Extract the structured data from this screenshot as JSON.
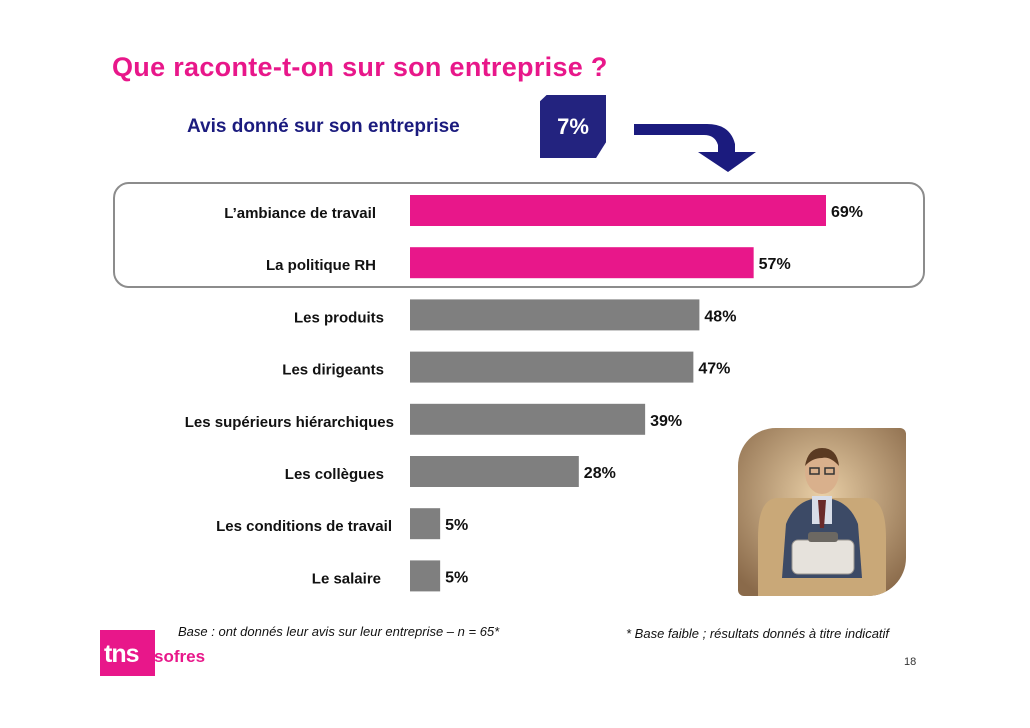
{
  "title": "Que raconte-t-on sur son entreprise ?",
  "subtitle": "Avis donné sur son entreprise",
  "badge": "7%",
  "base_note": "Base : ont donnés leur avis sur leur entreprise – n = 65*",
  "faible_note": "* Base faible ; résultats donnés à titre indicatif",
  "page_number": "18",
  "logo": {
    "tns": "tns",
    "sofres": "sofres"
  },
  "icons": {
    "arrow": "curved-arrow-icon",
    "photo": "businessman-photo"
  },
  "colors": {
    "highlight": "#e8178a",
    "default": "#7f7f7f",
    "navy": "#1b1b7e"
  },
  "chart_data": {
    "type": "bar",
    "orientation": "horizontal",
    "categories": [
      "L’ambiance de travail",
      "La politique RH",
      "Les produits",
      "Les dirigeants",
      "Les supérieurs hiérarchiques",
      "Les collègues",
      "Les conditions de travail",
      "Le salaire"
    ],
    "values": [
      69,
      57,
      48,
      47,
      39,
      28,
      5,
      5
    ],
    "value_labels": [
      "69%",
      "57%",
      "48%",
      "47%",
      "39%",
      "28%",
      "5%",
      "5%"
    ],
    "highlighted": [
      true,
      true,
      false,
      false,
      false,
      false,
      false,
      false
    ],
    "xlim": [
      0,
      100
    ],
    "grid": false,
    "legend": "none"
  }
}
